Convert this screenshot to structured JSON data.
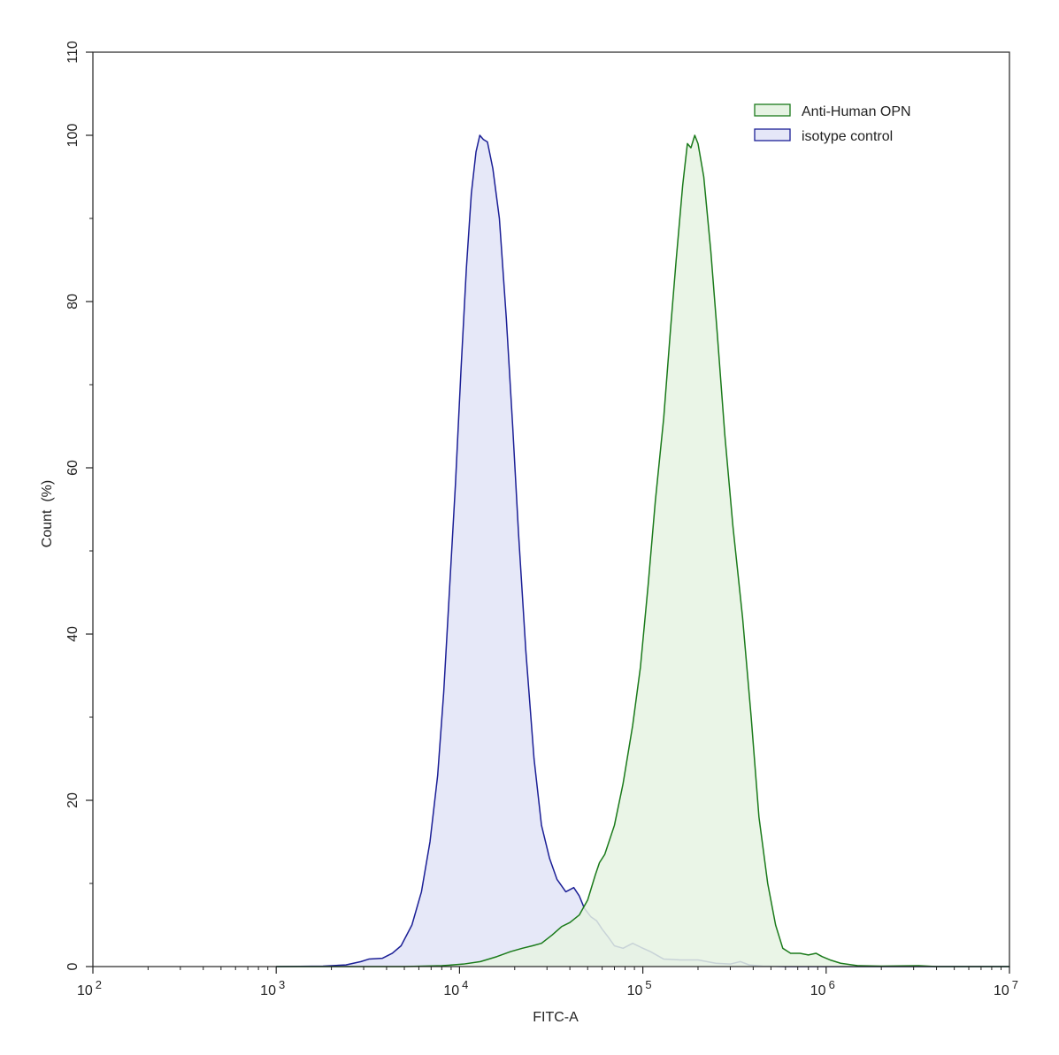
{
  "chart_data": {
    "type": "area",
    "title": "",
    "xlabel": "FITC-A",
    "ylabel": "Count  (%)",
    "x_scale": "log",
    "xlim": [
      100,
      10000000
    ],
    "ylim": [
      0,
      110
    ],
    "x_ticks": [
      {
        "value": 100,
        "base": "10",
        "exp": "2"
      },
      {
        "value": 1000,
        "base": "10",
        "exp": "3"
      },
      {
        "value": 10000,
        "base": "10",
        "exp": "4"
      },
      {
        "value": 100000,
        "base": "10",
        "exp": "5"
      },
      {
        "value": 1000000,
        "base": "10",
        "exp": "6"
      },
      {
        "value": 10000000,
        "base": "10",
        "exp": "7"
      }
    ],
    "y_ticks": [
      0,
      20,
      40,
      60,
      80,
      100,
      110
    ],
    "grid": false,
    "legend_position": "top-right",
    "series": [
      {
        "name": "Anti-Human OPN",
        "stroke": "#1a7a1a",
        "fill": "#e6f3e3",
        "points": [
          [
            1000,
            0
          ],
          [
            5000,
            0
          ],
          [
            8000,
            0.1
          ],
          [
            10500,
            0.3
          ],
          [
            13000,
            0.6
          ],
          [
            16000,
            1.2
          ],
          [
            19000,
            1.8
          ],
          [
            22000,
            2.2
          ],
          [
            25000,
            2.5
          ],
          [
            28000,
            2.8
          ],
          [
            32000,
            3.8
          ],
          [
            36000,
            4.8
          ],
          [
            40000,
            5.3
          ],
          [
            45000,
            6.2
          ],
          [
            50000,
            8.0
          ],
          [
            55000,
            11.0
          ],
          [
            58000,
            12.5
          ],
          [
            62000,
            13.5
          ],
          [
            70000,
            17.0
          ],
          [
            78000,
            22.0
          ],
          [
            88000,
            29.0
          ],
          [
            97000,
            36.0
          ],
          [
            107000,
            46.0
          ],
          [
            117000,
            56.0
          ],
          [
            130000,
            66.0
          ],
          [
            142000,
            77.0
          ],
          [
            152000,
            85.0
          ],
          [
            165000,
            94.0
          ],
          [
            175000,
            99.0
          ],
          [
            183000,
            98.5
          ],
          [
            192000,
            100.0
          ],
          [
            200000,
            99.0
          ],
          [
            215000,
            95.0
          ],
          [
            235000,
            86.0
          ],
          [
            255000,
            76.0
          ],
          [
            280000,
            64.0
          ],
          [
            310000,
            53.0
          ],
          [
            350000,
            42.0
          ],
          [
            390000,
            30.0
          ],
          [
            430000,
            18.0
          ],
          [
            480000,
            10.0
          ],
          [
            530000,
            5.0
          ],
          [
            580000,
            2.2
          ],
          [
            640000,
            1.6
          ],
          [
            720000,
            1.6
          ],
          [
            800000,
            1.4
          ],
          [
            880000,
            1.6
          ],
          [
            950000,
            1.2
          ],
          [
            1050000,
            0.8
          ],
          [
            1200000,
            0.4
          ],
          [
            1500000,
            0.1
          ],
          [
            2000000,
            0.05
          ],
          [
            3200000,
            0.1
          ],
          [
            4000000,
            0
          ],
          [
            10000000,
            0
          ]
        ]
      },
      {
        "name": "isotype control",
        "stroke": "#1b1f96",
        "fill": "#e5e7f8",
        "points": [
          [
            1000,
            0
          ],
          [
            1800,
            0.05
          ],
          [
            2400,
            0.2
          ],
          [
            2900,
            0.6
          ],
          [
            3200,
            0.9
          ],
          [
            3800,
            1.0
          ],
          [
            4300,
            1.6
          ],
          [
            4800,
            2.5
          ],
          [
            5500,
            5.0
          ],
          [
            6200,
            9.0
          ],
          [
            6900,
            15.0
          ],
          [
            7600,
            23.0
          ],
          [
            8200,
            33.0
          ],
          [
            8800,
            45.0
          ],
          [
            9500,
            58.0
          ],
          [
            10200,
            72.0
          ],
          [
            10900,
            84.0
          ],
          [
            11600,
            93.0
          ],
          [
            12300,
            98.0
          ],
          [
            12900,
            100.0
          ],
          [
            13500,
            99.5
          ],
          [
            14200,
            99.2
          ],
          [
            15200,
            96.0
          ],
          [
            16500,
            90.0
          ],
          [
            18000,
            78.0
          ],
          [
            19500,
            65.0
          ],
          [
            21000,
            52.0
          ],
          [
            23000,
            38.0
          ],
          [
            25500,
            25.0
          ],
          [
            28000,
            17.0
          ],
          [
            31000,
            13.0
          ],
          [
            34000,
            10.5
          ],
          [
            38000,
            9.0
          ],
          [
            42000,
            9.5
          ],
          [
            45000,
            8.5
          ],
          [
            48000,
            7.0
          ],
          [
            52000,
            6.0
          ],
          [
            56000,
            5.5
          ],
          [
            60000,
            4.5
          ],
          [
            65000,
            3.5
          ],
          [
            70000,
            2.5
          ],
          [
            78000,
            2.2
          ],
          [
            88000,
            2.8
          ],
          [
            98000,
            2.3
          ],
          [
            110000,
            1.8
          ],
          [
            130000,
            0.9
          ],
          [
            160000,
            0.8
          ],
          [
            200000,
            0.8
          ],
          [
            250000,
            0.4
          ],
          [
            300000,
            0.3
          ],
          [
            340000,
            0.6
          ],
          [
            380000,
            0.2
          ],
          [
            450000,
            0.05
          ],
          [
            600000,
            0
          ],
          [
            10000000,
            0
          ]
        ]
      }
    ]
  }
}
